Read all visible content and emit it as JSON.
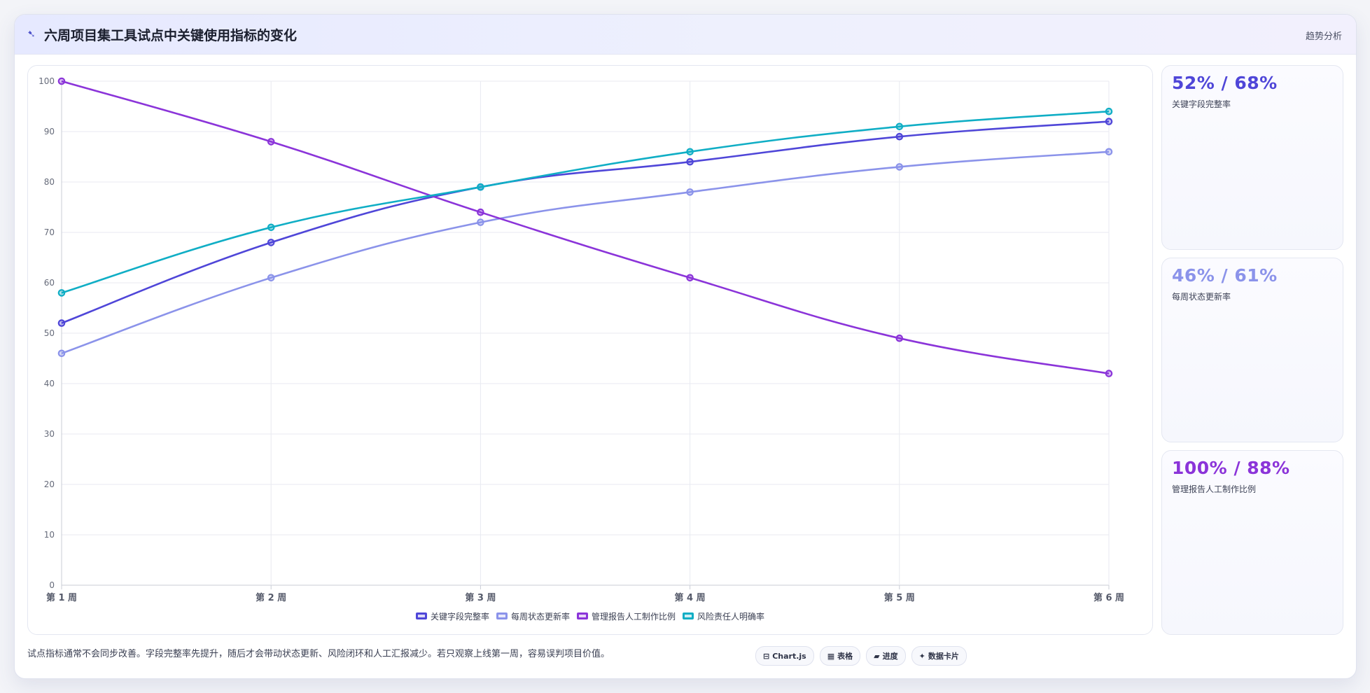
{
  "header": {
    "icon": "chart-line-icon",
    "title": "六周项目集工具试点中关键使用指标的变化",
    "tag": "趋势分析"
  },
  "chart_data": {
    "type": "line",
    "categories": [
      "第 1 周",
      "第 2 周",
      "第 3 周",
      "第 4 周",
      "第 5 周",
      "第 6 周"
    ],
    "ylim": [
      0,
      100
    ],
    "yticks": [
      0,
      10,
      20,
      30,
      40,
      50,
      60,
      70,
      80,
      90,
      100
    ],
    "grid": true,
    "legend_position": "bottom",
    "series": [
      {
        "name": "关键字段完整率",
        "color": "#4f46d8",
        "values": [
          52,
          68,
          79,
          84,
          89,
          92
        ]
      },
      {
        "name": "每周状态更新率",
        "color": "#8b93ea",
        "values": [
          46,
          61,
          72,
          78,
          83,
          86
        ]
      },
      {
        "name": "管理报告人工制作比例",
        "color": "#8b34d9",
        "values": [
          100,
          88,
          74,
          61,
          49,
          42
        ]
      },
      {
        "name": "风险责任人明确率",
        "color": "#10aec5",
        "values": [
          58,
          71,
          79,
          86,
          91,
          94
        ]
      }
    ]
  },
  "side_cards": [
    {
      "value": "52% / 68%",
      "label": "关键字段完整率",
      "color": "#4f46d8"
    },
    {
      "value": "46% / 61%",
      "label": "每周状态更新率",
      "color": "#8b93ea"
    },
    {
      "value": "100% / 88%",
      "label": "管理报告人工制作比例",
      "color": "#8b34d9"
    }
  ],
  "footer": {
    "note": "试点指标通常不会同步改善。字段完整率先提升，随后才会带动状态更新、风险闭环和人工汇报减少。若只观察上线第一周，容易误判项目价值。",
    "chips": [
      {
        "icon": "chart-icon",
        "glyph": "⊟",
        "label": "Chart.js"
      },
      {
        "icon": "table-icon",
        "glyph": "▦",
        "label": "表格"
      },
      {
        "icon": "progress-icon",
        "glyph": "▰",
        "label": "进度"
      },
      {
        "icon": "data-card-icon",
        "glyph": "✦",
        "label": "数据卡片"
      }
    ]
  }
}
